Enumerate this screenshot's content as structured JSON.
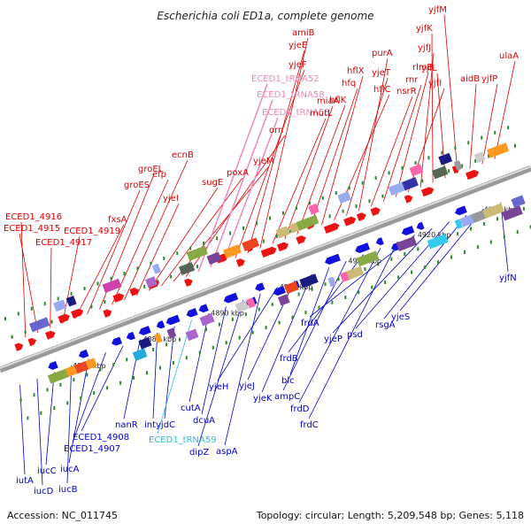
{
  "title": "Escherichia coli ED1a, complete genome",
  "footer": {
    "accession": "Accession: NC_011745",
    "summary": "Topology: circular; Length: 5,209,548 bp; Genes: 5,118"
  },
  "colors": {
    "forward_label": "#dd0000",
    "reverse_label": "#0000cc",
    "trna_forward": "#ee88bb",
    "trna_reverse": "#33bbdd",
    "backbone": "#9a9a9a"
  },
  "ticks": [
    "4870 kbp",
    "4880 kbp",
    "4890 kbp",
    "4900 kbp",
    "4910 kbp",
    "4920 kbp",
    "4930 kbp"
  ],
  "forward_labels": [
    "ECED1_4916",
    "ECED1_4915",
    "ECED1_4917",
    "ECED1_4919",
    "fxsA",
    "groES",
    "groEL",
    "efp",
    "ecnB",
    "yjeI",
    "sugE",
    "poxA",
    "yjeM",
    "orn",
    "ECED1_tRNA52",
    "ECED1_tRNA58",
    "ECED1_tRNA53",
    "yjeF",
    "yjeE",
    "amiB",
    "mutL",
    "miaA",
    "hflK",
    "hfq",
    "hflX",
    "hflC",
    "yjeT",
    "purA",
    "nsrR",
    "rnr",
    "rlmB",
    "yjfI",
    "yjfJ",
    "yjfK",
    "yjfL",
    "yjfM",
    "aidB",
    "yjfP",
    "ulaA"
  ],
  "reverse_labels": [
    "iutA",
    "iucD",
    "iucC",
    "iucB",
    "iucA",
    "ECED1_4907",
    "ECED1_4908",
    "nanR",
    "int",
    "yjdC",
    "ECED1_tRNA59",
    "cutA",
    "dcuA",
    "dipZ",
    "aspA",
    "yjeH",
    "yjeJ",
    "yjeK",
    "blc",
    "ampC",
    "frdB",
    "frdD",
    "frdC",
    "frdA",
    "yjeP",
    "psd",
    "rsgA",
    "yjeS",
    "yjfN"
  ]
}
